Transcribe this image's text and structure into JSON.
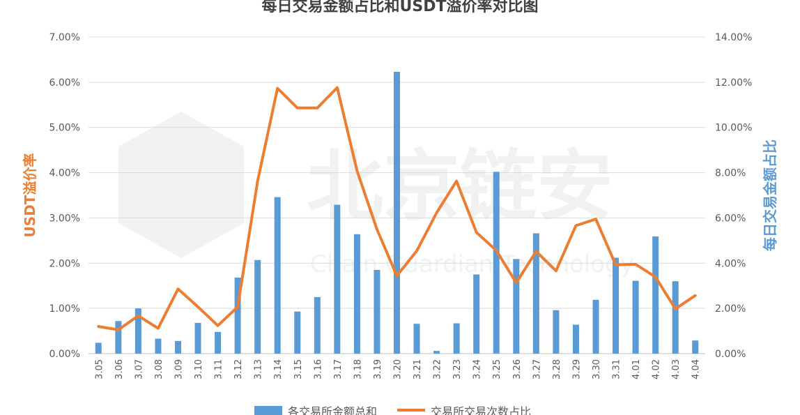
{
  "watermark": {
    "text": "北京链安",
    "sub": "Chain Guardian Technology",
    "logo_icon": "hexagon-logo-icon"
  },
  "chart_data": {
    "type": "bar+line",
    "title": "每日交易金额占比和USDT溢价率对比图",
    "ylabel_left": "USDT溢价率",
    "ylabel_right": "每日交易金额占比",
    "ylim_left": [
      0,
      0.07
    ],
    "ylim_right": [
      0,
      0.14
    ],
    "yticks_left": [
      "0.00%",
      "1.00%",
      "2.00%",
      "3.00%",
      "4.00%",
      "5.00%",
      "6.00%",
      "7.00%"
    ],
    "yticks_right": [
      "0.00%",
      "2.00%",
      "4.00%",
      "6.00%",
      "8.00%",
      "10.00%",
      "12.00%",
      "14.00%"
    ],
    "grid": true,
    "legend_position": "bottom",
    "categories": [
      "3.05",
      "3.06",
      "3.07",
      "3.08",
      "3.09",
      "3.10",
      "3.11",
      "3.12",
      "3.13",
      "3.14",
      "3.15",
      "3.16",
      "3.17",
      "3.18",
      "3.19",
      "3.20",
      "3.21",
      "3.22",
      "3.23",
      "3.24",
      "3.25",
      "3.26",
      "3.27",
      "3.28",
      "3.29",
      "3.30",
      "3.31",
      "4.01",
      "4.02",
      "4.03",
      "4.04"
    ],
    "series": [
      {
        "name": "各交易所金额总和",
        "type": "bar",
        "axis": "left",
        "color": "#5B9BD5",
        "values": [
          0.0024,
          0.0072,
          0.01,
          0.0033,
          0.0028,
          0.0068,
          0.0048,
          0.0168,
          0.0207,
          0.0346,
          0.0093,
          0.0125,
          0.0329,
          0.0264,
          0.0185,
          0.0623,
          0.0066,
          0.0006,
          0.0067,
          0.0175,
          0.0402,
          0.0209,
          0.0266,
          0.0096,
          0.0064,
          0.0119,
          0.0212,
          0.0161,
          0.0259,
          0.016,
          0.0029
        ]
      },
      {
        "name": "交易所交易次数占比",
        "type": "line",
        "axis": "right",
        "color": "#ED7D31",
        "values": [
          0.012,
          0.0105,
          0.0167,
          0.0112,
          0.0286,
          0.0207,
          0.0124,
          0.0207,
          0.0763,
          0.1173,
          0.1086,
          0.1086,
          0.1176,
          0.0808,
          0.0549,
          0.0344,
          0.0454,
          0.0623,
          0.0763,
          0.0536,
          0.0456,
          0.0313,
          0.0452,
          0.0366,
          0.0566,
          0.0595,
          0.0393,
          0.0395,
          0.0339,
          0.0198,
          0.0257
        ]
      }
    ]
  }
}
